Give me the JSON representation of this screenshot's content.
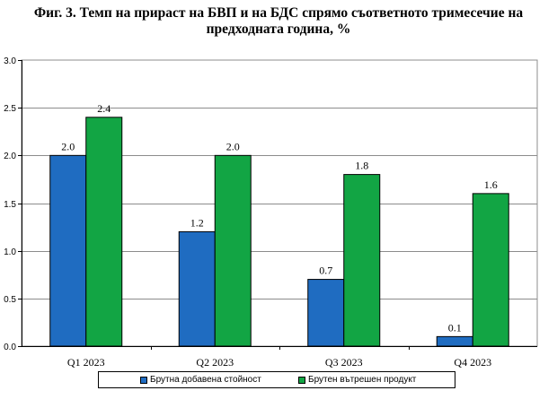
{
  "chart_data": {
    "type": "bar",
    "title_line1": "Фиг. 3. Темп на прираст на БВП и на БДС спрямо съответното тримесечие на",
    "title_line2": "предходната година, %",
    "categories": [
      "Q1 2023",
      "Q2 2023",
      "Q3 2023",
      "Q4 2023"
    ],
    "series": [
      {
        "name": "Брутна добавена стойност",
        "values": [
          2.0,
          1.2,
          0.7,
          0.1
        ],
        "labels": [
          "2.0",
          "1.2",
          "0.7",
          "0.1"
        ],
        "color": "#1F6CC1"
      },
      {
        "name": "Брутен вътрешен продукт",
        "values": [
          2.4,
          2.0,
          1.8,
          1.6
        ],
        "labels": [
          "2.4",
          "2.0",
          "1.8",
          "1.6"
        ],
        "color": "#12A544"
      }
    ],
    "ylim": [
      0,
      3.0
    ],
    "yticks": [
      "0.0",
      "0.5",
      "1.0",
      "1.5",
      "2.0",
      "2.5",
      "3.0"
    ],
    "grid": true,
    "legend_position": "bottom",
    "xlabel": "",
    "ylabel": ""
  }
}
